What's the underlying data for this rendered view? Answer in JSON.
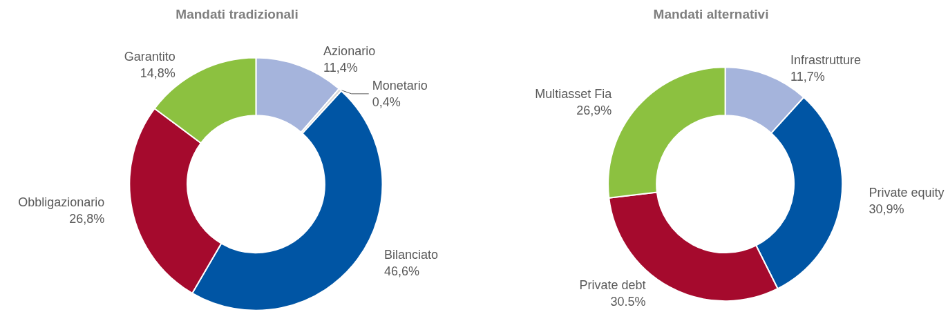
{
  "chart_data": [
    {
      "type": "donut",
      "title": "Mandati tradizionali",
      "categories": [
        "Azionario",
        "Monetario",
        "Bilanciato",
        "Obbligazionario",
        "Garantito"
      ],
      "values": [
        11.4,
        0.4,
        46.6,
        26.8,
        14.8
      ],
      "colors": [
        "#a5b4dc",
        "#d9d9d9",
        "#0055a4",
        "#a50a2d",
        "#8cc140"
      ],
      "value_labels": [
        "11,4%",
        "0,4%",
        "46,6%",
        "26,8%",
        "14,8%"
      ]
    },
    {
      "type": "donut",
      "title": "Mandati alternativi",
      "categories": [
        "Infrastrutture",
        "Private equity",
        "Private debt",
        "Multiasset Fia"
      ],
      "values": [
        11.7,
        30.9,
        30.5,
        26.9
      ],
      "colors": [
        "#a5b4dc",
        "#0055a4",
        "#a50a2d",
        "#8cc140"
      ],
      "value_labels": [
        "11,7%",
        "30,9%",
        "30.5%",
        "26,9%"
      ]
    }
  ]
}
